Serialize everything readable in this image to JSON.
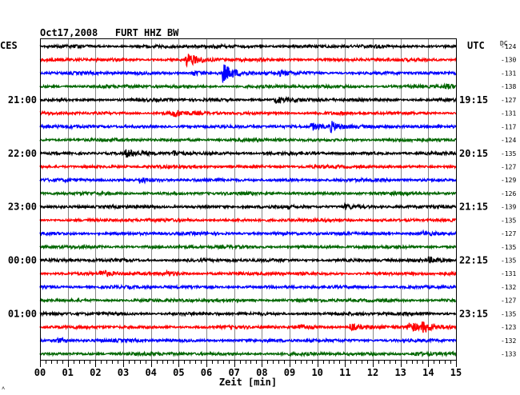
{
  "chart_data": {
    "type": "line",
    "title": "Oct17,2008   FURT HHZ BW",
    "left_tz_label": "CES",
    "right_tz_label": "UTC",
    "dc_label": "DC",
    "xlabel": "Zeit [min]",
    "xlim": [
      0,
      15
    ],
    "x_ticks": [
      "00",
      "01",
      "02",
      "03",
      "04",
      "05",
      "06",
      "07",
      "08",
      "09",
      "10",
      "11",
      "12",
      "13",
      "14",
      "15"
    ],
    "grid": true,
    "left_time_labels": [
      {
        "trace": 4,
        "text": "21:00"
      },
      {
        "trace": 8,
        "text": "22:00"
      },
      {
        "trace": 12,
        "text": "23:00"
      },
      {
        "trace": 16,
        "text": "00:00"
      },
      {
        "trace": 20,
        "text": "01:00"
      }
    ],
    "right_time_labels": [
      {
        "trace": 4,
        "text": "19:15"
      },
      {
        "trace": 8,
        "text": "20:15"
      },
      {
        "trace": 12,
        "text": "21:15"
      },
      {
        "trace": 16,
        "text": "22:15"
      },
      {
        "trace": 20,
        "text": "23:15"
      }
    ],
    "trace_colors": [
      "#000000",
      "#ff0000",
      "#0000ff",
      "#006600"
    ],
    "dc_offsets": [
      -124,
      -130,
      -131,
      -138,
      -127,
      -131,
      -117,
      -124,
      -135,
      -127,
      -129,
      -126,
      -139,
      -135,
      -127,
      -135,
      -135,
      -131,
      -132,
      -127,
      -135,
      -123,
      -132,
      -133
    ],
    "events": [
      {
        "trace": 1,
        "t_min": 5.3,
        "amp": 1.8
      },
      {
        "trace": 2,
        "t_min": 5.5,
        "amp": 0.7
      },
      {
        "trace": 2,
        "t_min": 6.6,
        "amp": 2.4
      },
      {
        "trace": 2,
        "t_min": 8.6,
        "amp": 0.6
      },
      {
        "trace": 3,
        "t_min": 14.6,
        "amp": 0.6
      },
      {
        "trace": 4,
        "t_min": 8.5,
        "amp": 0.8
      },
      {
        "trace": 5,
        "t_min": 4.8,
        "amp": 0.9
      },
      {
        "trace": 6,
        "t_min": 9.8,
        "amp": 1.0
      },
      {
        "trace": 6,
        "t_min": 10.5,
        "amp": 1.3
      },
      {
        "trace": 8,
        "t_min": 3.1,
        "amp": 0.9
      },
      {
        "trace": 8,
        "t_min": 4.8,
        "amp": 0.7
      },
      {
        "trace": 10,
        "t_min": 3.6,
        "amp": 0.7
      },
      {
        "trace": 12,
        "t_min": 11.0,
        "amp": 0.6
      },
      {
        "trace": 14,
        "t_min": 13.8,
        "amp": 0.5
      },
      {
        "trace": 16,
        "t_min": 14.0,
        "amp": 0.6
      },
      {
        "trace": 17,
        "t_min": 2.2,
        "amp": 0.8
      },
      {
        "trace": 17,
        "t_min": 4.6,
        "amp": 0.5
      },
      {
        "trace": 21,
        "t_min": 9.3,
        "amp": 0.6
      },
      {
        "trace": 21,
        "t_min": 11.2,
        "amp": 0.9
      },
      {
        "trace": 21,
        "t_min": 13.3,
        "amp": 1.5
      },
      {
        "trace": 21,
        "t_min": 13.8,
        "amp": 1.2
      },
      {
        "trace": 22,
        "t_min": 0.6,
        "amp": 0.6
      },
      {
        "trace": 23,
        "t_min": 13.5,
        "amp": 0.6
      }
    ]
  }
}
